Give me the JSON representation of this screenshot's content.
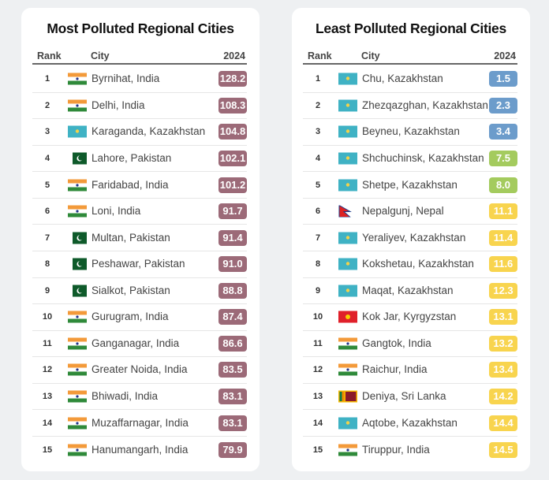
{
  "left": {
    "title": "Most Polluted Regional Cities",
    "headers": {
      "rank": "Rank",
      "city": "City",
      "year": "2024"
    },
    "rows": [
      {
        "rank": "1",
        "flag": "india",
        "city": "Byrnihat, India",
        "value": "128.2",
        "color": "#9c6a78"
      },
      {
        "rank": "2",
        "flag": "india",
        "city": "Delhi, India",
        "value": "108.3",
        "color": "#9c6a78"
      },
      {
        "rank": "3",
        "flag": "kazakhstan",
        "city": "Karaganda, Kazakhstan",
        "value": "104.8",
        "color": "#9c6a78"
      },
      {
        "rank": "4",
        "flag": "pakistan",
        "city": "Lahore, Pakistan",
        "value": "102.1",
        "color": "#9c6a78"
      },
      {
        "rank": "5",
        "flag": "india",
        "city": "Faridabad, India",
        "value": "101.2",
        "color": "#9c6a78"
      },
      {
        "rank": "6",
        "flag": "india",
        "city": "Loni, India",
        "value": "91.7",
        "color": "#9c6a78"
      },
      {
        "rank": "7",
        "flag": "pakistan",
        "city": "Multan, Pakistan",
        "value": "91.4",
        "color": "#9c6a78"
      },
      {
        "rank": "8",
        "flag": "pakistan",
        "city": "Peshawar, Pakistan",
        "value": "91.0",
        "color": "#9c6a78"
      },
      {
        "rank": "9",
        "flag": "pakistan",
        "city": "Sialkot, Pakistan",
        "value": "88.8",
        "color": "#9c6a78"
      },
      {
        "rank": "10",
        "flag": "india",
        "city": "Gurugram, India",
        "value": "87.4",
        "color": "#9c6a78"
      },
      {
        "rank": "11",
        "flag": "india",
        "city": "Ganganagar, India",
        "value": "86.6",
        "color": "#9c6a78"
      },
      {
        "rank": "12",
        "flag": "india",
        "city": "Greater Noida, India",
        "value": "83.5",
        "color": "#9c6a78"
      },
      {
        "rank": "13",
        "flag": "india",
        "city": "Bhiwadi, India",
        "value": "83.1",
        "color": "#9c6a78"
      },
      {
        "rank": "14",
        "flag": "india",
        "city": "Muzaffarnagar, India",
        "value": "83.1",
        "color": "#9c6a78"
      },
      {
        "rank": "15",
        "flag": "india",
        "city": "Hanumangarh, India",
        "value": "79.9",
        "color": "#9c6a78"
      }
    ]
  },
  "right": {
    "title": "Least Polluted Regional Cities",
    "headers": {
      "rank": "Rank",
      "city": "City",
      "year": "2024"
    },
    "rows": [
      {
        "rank": "1",
        "flag": "kazakhstan",
        "city": "Chu, Kazakhstan",
        "value": "1.5",
        "color": "#6c9ccb"
      },
      {
        "rank": "2",
        "flag": "kazakhstan",
        "city": "Zhezqazghan, Kazakhstan",
        "value": "2.3",
        "color": "#6c9ccb"
      },
      {
        "rank": "3",
        "flag": "kazakhstan",
        "city": "Beyneu, Kazakhstan",
        "value": "3.4",
        "color": "#6c9ccb"
      },
      {
        "rank": "4",
        "flag": "kazakhstan",
        "city": "Shchuchinsk, Kazakhstan",
        "value": "7.5",
        "color": "#a4cb5e"
      },
      {
        "rank": "5",
        "flag": "kazakhstan",
        "city": "Shetpe, Kazakhstan",
        "value": "8.0",
        "color": "#a4cb5e"
      },
      {
        "rank": "6",
        "flag": "nepal",
        "city": "Nepalgunj, Nepal",
        "value": "11.1",
        "color": "#f8d44e"
      },
      {
        "rank": "7",
        "flag": "kazakhstan",
        "city": "Yeraliyev, Kazakhstan",
        "value": "11.4",
        "color": "#f8d44e"
      },
      {
        "rank": "8",
        "flag": "kazakhstan",
        "city": "Kokshetau, Kazakhstan",
        "value": "11.6",
        "color": "#f8d44e"
      },
      {
        "rank": "9",
        "flag": "kazakhstan",
        "city": "Maqat, Kazakhstan",
        "value": "12.3",
        "color": "#f8d44e"
      },
      {
        "rank": "10",
        "flag": "kyrgyzstan",
        "city": "Kok Jar, Kyrgyzstan",
        "value": "13.1",
        "color": "#f8d44e"
      },
      {
        "rank": "11",
        "flag": "india",
        "city": "Gangtok, India",
        "value": "13.2",
        "color": "#f8d44e"
      },
      {
        "rank": "12",
        "flag": "india",
        "city": "Raichur, India",
        "value": "13.4",
        "color": "#f8d44e"
      },
      {
        "rank": "13",
        "flag": "sri-lanka",
        "city": "Deniya, Sri Lanka",
        "value": "14.2",
        "color": "#f8d44e"
      },
      {
        "rank": "14",
        "flag": "kazakhstan",
        "city": "Aqtobe, Kazakhstan",
        "value": "14.4",
        "color": "#f8d44e"
      },
      {
        "rank": "15",
        "flag": "india",
        "city": "Tiruppur, India",
        "value": "14.5",
        "color": "#f8d44e"
      }
    ]
  }
}
